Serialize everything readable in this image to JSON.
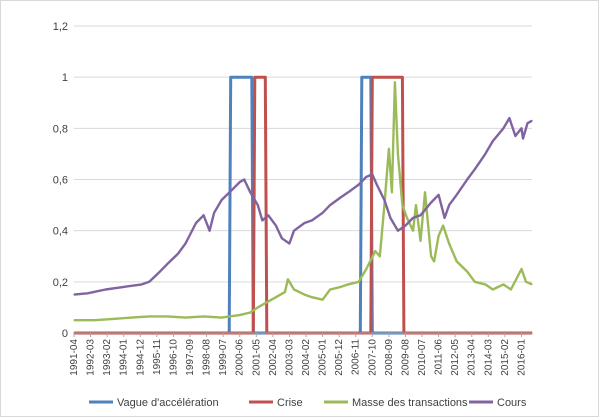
{
  "chart_data": {
    "type": "line",
    "ylim": [
      0,
      1.2
    ],
    "y_ticks": [
      "0",
      "0,2",
      "0,4",
      "0,6",
      "0,8",
      "1",
      "1,2"
    ],
    "y_tick_values": [
      0,
      0.2,
      0.4,
      0.6,
      0.8,
      1.0,
      1.2
    ],
    "grid": true,
    "legend_position": "bottom",
    "x_range_months": [
      "1991-04",
      "2016-08"
    ],
    "x_ticks": [
      "1991-04",
      "1992-03",
      "1993-02",
      "1994-01",
      "1994-12",
      "1995-11",
      "1996-10",
      "1997-09",
      "1998-08",
      "1999-07",
      "2000-06",
      "2001-05",
      "2002-04",
      "2003-03",
      "2004-02",
      "2005-01",
      "2005-12",
      "2006-11",
      "2007-10",
      "2008-09",
      "2009-08",
      "2010-07",
      "2011-06",
      "2012-05",
      "2013-04",
      "2014-03",
      "2015-02",
      "2016-01"
    ],
    "series": [
      {
        "name": "Vague d'accélération",
        "color": "#4f81bd",
        "style": "step",
        "values": [
          [
            "1991-04",
            0
          ],
          [
            "1999-11",
            0
          ],
          [
            "1999-12",
            1
          ],
          [
            "2001-02",
            1
          ],
          [
            "2001-03",
            0
          ],
          [
            "2007-02",
            0
          ],
          [
            "2007-03",
            1
          ],
          [
            "2007-09",
            1
          ],
          [
            "2007-10",
            0
          ],
          [
            "2016-08",
            0
          ]
        ]
      },
      {
        "name": "Crise",
        "color": "#c0504d",
        "style": "step",
        "values": [
          [
            "1991-04",
            0
          ],
          [
            "2001-03",
            0
          ],
          [
            "2001-04",
            1
          ],
          [
            "2001-11",
            1
          ],
          [
            "2001-12",
            0
          ],
          [
            "2007-09",
            0
          ],
          [
            "2007-10",
            1
          ],
          [
            "2009-06",
            1
          ],
          [
            "2009-07",
            0
          ],
          [
            "2016-08",
            0
          ]
        ]
      },
      {
        "name": "Masse des transactions",
        "color": "#9bbb59",
        "style": "line",
        "values": [
          [
            "1991-04",
            0.05
          ],
          [
            "1992-06",
            0.05
          ],
          [
            "1993-06",
            0.055
          ],
          [
            "1994-06",
            0.06
          ],
          [
            "1995-06",
            0.065
          ],
          [
            "1996-06",
            0.065
          ],
          [
            "1997-06",
            0.06
          ],
          [
            "1998-06",
            0.065
          ],
          [
            "1999-06",
            0.06
          ],
          [
            "2000-06",
            0.07
          ],
          [
            "2001-01",
            0.08
          ],
          [
            "2001-06",
            0.1
          ],
          [
            "2001-12",
            0.12
          ],
          [
            "2002-06",
            0.14
          ],
          [
            "2002-12",
            0.16
          ],
          [
            "2003-02",
            0.21
          ],
          [
            "2003-06",
            0.17
          ],
          [
            "2004-01",
            0.15
          ],
          [
            "2004-06",
            0.14
          ],
          [
            "2005-01",
            0.13
          ],
          [
            "2005-06",
            0.17
          ],
          [
            "2006-01",
            0.18
          ],
          [
            "2006-06",
            0.19
          ],
          [
            "2007-01",
            0.2
          ],
          [
            "2007-06",
            0.25
          ],
          [
            "2007-12",
            0.32
          ],
          [
            "2008-03",
            0.3
          ],
          [
            "2008-06",
            0.5
          ],
          [
            "2008-09",
            0.72
          ],
          [
            "2008-11",
            0.55
          ],
          [
            "2009-01",
            0.98
          ],
          [
            "2009-03",
            0.7
          ],
          [
            "2009-06",
            0.5
          ],
          [
            "2009-09",
            0.45
          ],
          [
            "2010-01",
            0.4
          ],
          [
            "2010-03",
            0.5
          ],
          [
            "2010-06",
            0.36
          ],
          [
            "2010-09",
            0.55
          ],
          [
            "2011-01",
            0.3
          ],
          [
            "2011-03",
            0.28
          ],
          [
            "2011-06",
            0.38
          ],
          [
            "2011-09",
            0.42
          ],
          [
            "2012-01",
            0.35
          ],
          [
            "2012-06",
            0.28
          ],
          [
            "2013-01",
            0.24
          ],
          [
            "2013-06",
            0.2
          ],
          [
            "2014-01",
            0.19
          ],
          [
            "2014-06",
            0.17
          ],
          [
            "2015-01",
            0.19
          ],
          [
            "2015-06",
            0.17
          ],
          [
            "2016-01",
            0.25
          ],
          [
            "2016-04",
            0.2
          ],
          [
            "2016-08",
            0.19
          ]
        ]
      },
      {
        "name": "Cours",
        "color": "#8064a2",
        "style": "line",
        "values": [
          [
            "1991-04",
            0.15
          ],
          [
            "1992-01",
            0.155
          ],
          [
            "1993-01",
            0.17
          ],
          [
            "1994-01",
            0.18
          ],
          [
            "1995-01",
            0.19
          ],
          [
            "1995-06",
            0.2
          ],
          [
            "1996-01",
            0.24
          ],
          [
            "1996-06",
            0.27
          ],
          [
            "1997-01",
            0.31
          ],
          [
            "1997-06",
            0.35
          ],
          [
            "1998-01",
            0.43
          ],
          [
            "1998-06",
            0.46
          ],
          [
            "1998-10",
            0.4
          ],
          [
            "1999-01",
            0.47
          ],
          [
            "1999-06",
            0.52
          ],
          [
            "2000-01",
            0.56
          ],
          [
            "2000-06",
            0.59
          ],
          [
            "2000-09",
            0.6
          ],
          [
            "2001-01",
            0.55
          ],
          [
            "2001-06",
            0.5
          ],
          [
            "2001-09",
            0.44
          ],
          [
            "2002-01",
            0.46
          ],
          [
            "2002-06",
            0.42
          ],
          [
            "2002-10",
            0.37
          ],
          [
            "2003-03",
            0.35
          ],
          [
            "2003-06",
            0.4
          ],
          [
            "2004-01",
            0.43
          ],
          [
            "2004-06",
            0.44
          ],
          [
            "2005-01",
            0.47
          ],
          [
            "2005-06",
            0.5
          ],
          [
            "2006-01",
            0.53
          ],
          [
            "2006-06",
            0.55
          ],
          [
            "2007-01",
            0.58
          ],
          [
            "2007-06",
            0.61
          ],
          [
            "2007-10",
            0.62
          ],
          [
            "2008-01",
            0.58
          ],
          [
            "2008-06",
            0.52
          ],
          [
            "2008-10",
            0.45
          ],
          [
            "2009-03",
            0.4
          ],
          [
            "2009-08",
            0.42
          ],
          [
            "2010-01",
            0.45
          ],
          [
            "2010-06",
            0.46
          ],
          [
            "2011-01",
            0.51
          ],
          [
            "2011-06",
            0.54
          ],
          [
            "2011-10",
            0.45
          ],
          [
            "2012-01",
            0.5
          ],
          [
            "2012-06",
            0.54
          ],
          [
            "2013-01",
            0.6
          ],
          [
            "2013-06",
            0.64
          ],
          [
            "2014-01",
            0.7
          ],
          [
            "2014-06",
            0.75
          ],
          [
            "2015-01",
            0.8
          ],
          [
            "2015-05",
            0.84
          ],
          [
            "2015-09",
            0.77
          ],
          [
            "2016-01",
            0.8
          ],
          [
            "2016-02",
            0.76
          ],
          [
            "2016-05",
            0.82
          ],
          [
            "2016-08",
            0.83
          ]
        ]
      }
    ]
  }
}
